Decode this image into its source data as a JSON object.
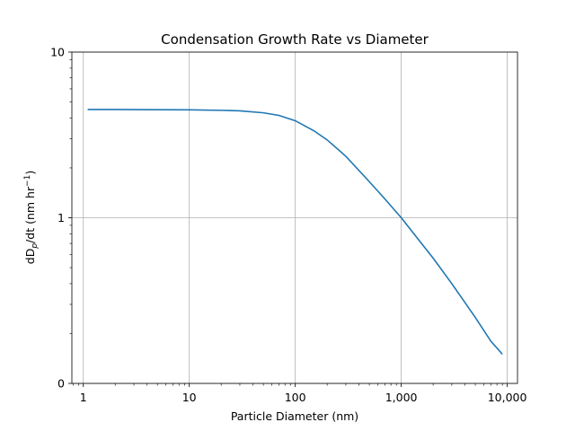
{
  "chart_data": {
    "type": "line",
    "title": "Condensation Growth Rate vs Diameter",
    "xlabel": "Particle Diameter (nm)",
    "ylabel_parts": {
      "base": "dD",
      "sub": "p",
      "mid": "/dt (nm hr",
      "sup": "−1",
      "end": ")"
    },
    "xscale": "log",
    "yscale": "log",
    "xlim": [
      0.78,
      12500
    ],
    "ylim": [
      0.1,
      10
    ],
    "grid": true,
    "x_ticks": [
      1,
      10,
      100,
      1000,
      10000
    ],
    "x_tick_labels": [
      "1",
      "10",
      "100",
      "1,000",
      "10,000"
    ],
    "y_ticks": [
      0.1,
      1,
      10
    ],
    "y_tick_labels": [
      "0",
      "1",
      "10"
    ],
    "series": [
      {
        "color": "#1f77b4",
        "x": [
          1.1,
          2,
          5,
          10,
          20,
          30,
          50,
          70,
          100,
          150,
          200,
          300,
          500,
          700,
          1000,
          1500,
          2000,
          3000,
          5000,
          7000,
          9000
        ],
        "y": [
          4.5,
          4.5,
          4.49,
          4.48,
          4.45,
          4.42,
          4.3,
          4.15,
          3.85,
          3.35,
          2.95,
          2.35,
          1.65,
          1.3,
          1.0,
          0.72,
          0.57,
          0.4,
          0.25,
          0.18,
          0.15
        ]
      }
    ]
  }
}
